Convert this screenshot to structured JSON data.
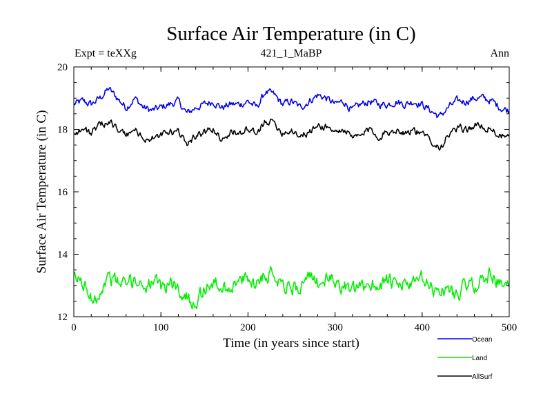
{
  "chart_data": {
    "type": "line",
    "title": "Surface Air Temperature (in C)",
    "subtitle_left": "Expt = teXXg",
    "subtitle_center": "421_1_MaBP",
    "subtitle_right": "Ann",
    "xlabel": "Time (in years since start)",
    "ylabel": "Surface Air Temperature (in C)",
    "xlim": [
      0,
      500
    ],
    "ylim": [
      12,
      20
    ],
    "x_ticks": [
      0,
      100,
      200,
      300,
      400,
      500
    ],
    "y_ticks": [
      12,
      14,
      16,
      18,
      20
    ],
    "x_step": 1,
    "series": [
      {
        "name": "Ocean",
        "color": "#0000ee",
        "anchors": [
          [
            0,
            18.8
          ],
          [
            10,
            18.9
          ],
          [
            20,
            18.8
          ],
          [
            30,
            19.0
          ],
          [
            40,
            19.3
          ],
          [
            50,
            19.0
          ],
          [
            60,
            18.7
          ],
          [
            70,
            19.0
          ],
          [
            80,
            18.7
          ],
          [
            90,
            18.6
          ],
          [
            100,
            18.7
          ],
          [
            110,
            18.8
          ],
          [
            120,
            18.9
          ],
          [
            130,
            18.5
          ],
          [
            140,
            18.7
          ],
          [
            150,
            18.8
          ],
          [
            160,
            18.9
          ],
          [
            170,
            18.7
          ],
          [
            180,
            18.8
          ],
          [
            190,
            18.8
          ],
          [
            200,
            18.9
          ],
          [
            210,
            18.7
          ],
          [
            220,
            19.2
          ],
          [
            230,
            19.1
          ],
          [
            240,
            18.8
          ],
          [
            250,
            18.9
          ],
          [
            260,
            18.7
          ],
          [
            270,
            18.9
          ],
          [
            280,
            19.1
          ],
          [
            290,
            19.0
          ],
          [
            300,
            18.8
          ],
          [
            310,
            18.9
          ],
          [
            320,
            18.6
          ],
          [
            330,
            18.8
          ],
          [
            340,
            18.9
          ],
          [
            350,
            18.8
          ],
          [
            360,
            18.8
          ],
          [
            370,
            18.9
          ],
          [
            380,
            18.8
          ],
          [
            390,
            18.9
          ],
          [
            400,
            18.8
          ],
          [
            410,
            18.6
          ],
          [
            420,
            18.4
          ],
          [
            430,
            18.7
          ],
          [
            440,
            18.9
          ],
          [
            450,
            18.9
          ],
          [
            460,
            19.0
          ],
          [
            470,
            19.0
          ],
          [
            480,
            18.9
          ],
          [
            490,
            18.7
          ],
          [
            500,
            18.6
          ]
        ],
        "noise": 0.1
      },
      {
        "name": "Land",
        "color": "#00ee00",
        "anchors": [
          [
            0,
            13.2
          ],
          [
            10,
            13.1
          ],
          [
            20,
            12.6
          ],
          [
            30,
            12.8
          ],
          [
            40,
            13.3
          ],
          [
            50,
            13.1
          ],
          [
            60,
            13.0
          ],
          [
            70,
            13.2
          ],
          [
            80,
            13.0
          ],
          [
            90,
            13.1
          ],
          [
            100,
            12.9
          ],
          [
            110,
            13.1
          ],
          [
            120,
            12.9
          ],
          [
            130,
            12.6
          ],
          [
            140,
            12.5
          ],
          [
            150,
            12.9
          ],
          [
            160,
            13.1
          ],
          [
            170,
            12.9
          ],
          [
            180,
            13.0
          ],
          [
            190,
            13.1
          ],
          [
            200,
            13.2
          ],
          [
            210,
            13.1
          ],
          [
            220,
            13.4
          ],
          [
            230,
            13.4
          ],
          [
            240,
            13.1
          ],
          [
            250,
            12.9
          ],
          [
            260,
            13.0
          ],
          [
            270,
            13.2
          ],
          [
            280,
            13.1
          ],
          [
            290,
            13.2
          ],
          [
            300,
            13.1
          ],
          [
            310,
            13.0
          ],
          [
            320,
            12.8
          ],
          [
            330,
            12.9
          ],
          [
            340,
            13.1
          ],
          [
            350,
            13.0
          ],
          [
            360,
            13.2
          ],
          [
            370,
            12.9
          ],
          [
            380,
            13.1
          ],
          [
            390,
            13.0
          ],
          [
            400,
            13.2
          ],
          [
            410,
            12.9
          ],
          [
            420,
            12.8
          ],
          [
            430,
            12.9
          ],
          [
            440,
            12.7
          ],
          [
            450,
            13.0
          ],
          [
            460,
            13.0
          ],
          [
            470,
            13.2
          ],
          [
            480,
            13.4
          ],
          [
            490,
            13.0
          ],
          [
            500,
            12.9
          ]
        ],
        "noise": 0.2
      },
      {
        "name": "AllSurf",
        "color": "#000000",
        "anchors": [
          [
            0,
            17.9
          ],
          [
            10,
            18.0
          ],
          [
            20,
            17.9
          ],
          [
            30,
            18.1
          ],
          [
            40,
            18.3
          ],
          [
            50,
            18.0
          ],
          [
            60,
            17.8
          ],
          [
            70,
            18.0
          ],
          [
            80,
            17.7
          ],
          [
            90,
            17.7
          ],
          [
            100,
            17.8
          ],
          [
            110,
            17.9
          ],
          [
            120,
            17.9
          ],
          [
            130,
            17.6
          ],
          [
            140,
            17.8
          ],
          [
            150,
            17.9
          ],
          [
            160,
            18.0
          ],
          [
            170,
            17.7
          ],
          [
            180,
            17.9
          ],
          [
            190,
            17.9
          ],
          [
            200,
            18.0
          ],
          [
            210,
            17.8
          ],
          [
            220,
            18.3
          ],
          [
            230,
            18.2
          ],
          [
            240,
            17.9
          ],
          [
            250,
            18.0
          ],
          [
            260,
            17.8
          ],
          [
            270,
            17.9
          ],
          [
            280,
            18.1
          ],
          [
            290,
            18.1
          ],
          [
            300,
            17.9
          ],
          [
            310,
            18.0
          ],
          [
            320,
            17.7
          ],
          [
            330,
            17.8
          ],
          [
            340,
            18.0
          ],
          [
            350,
            17.8
          ],
          [
            360,
            17.9
          ],
          [
            370,
            18.0
          ],
          [
            380,
            17.9
          ],
          [
            390,
            18.0
          ],
          [
            400,
            17.8
          ],
          [
            410,
            17.7
          ],
          [
            420,
            17.4
          ],
          [
            430,
            17.8
          ],
          [
            440,
            18.0
          ],
          [
            450,
            18.0
          ],
          [
            460,
            18.1
          ],
          [
            470,
            18.1
          ],
          [
            480,
            18.0
          ],
          [
            490,
            17.8
          ],
          [
            500,
            17.7
          ]
        ],
        "noise": 0.1
      }
    ],
    "legend_position": "bottom-right"
  }
}
